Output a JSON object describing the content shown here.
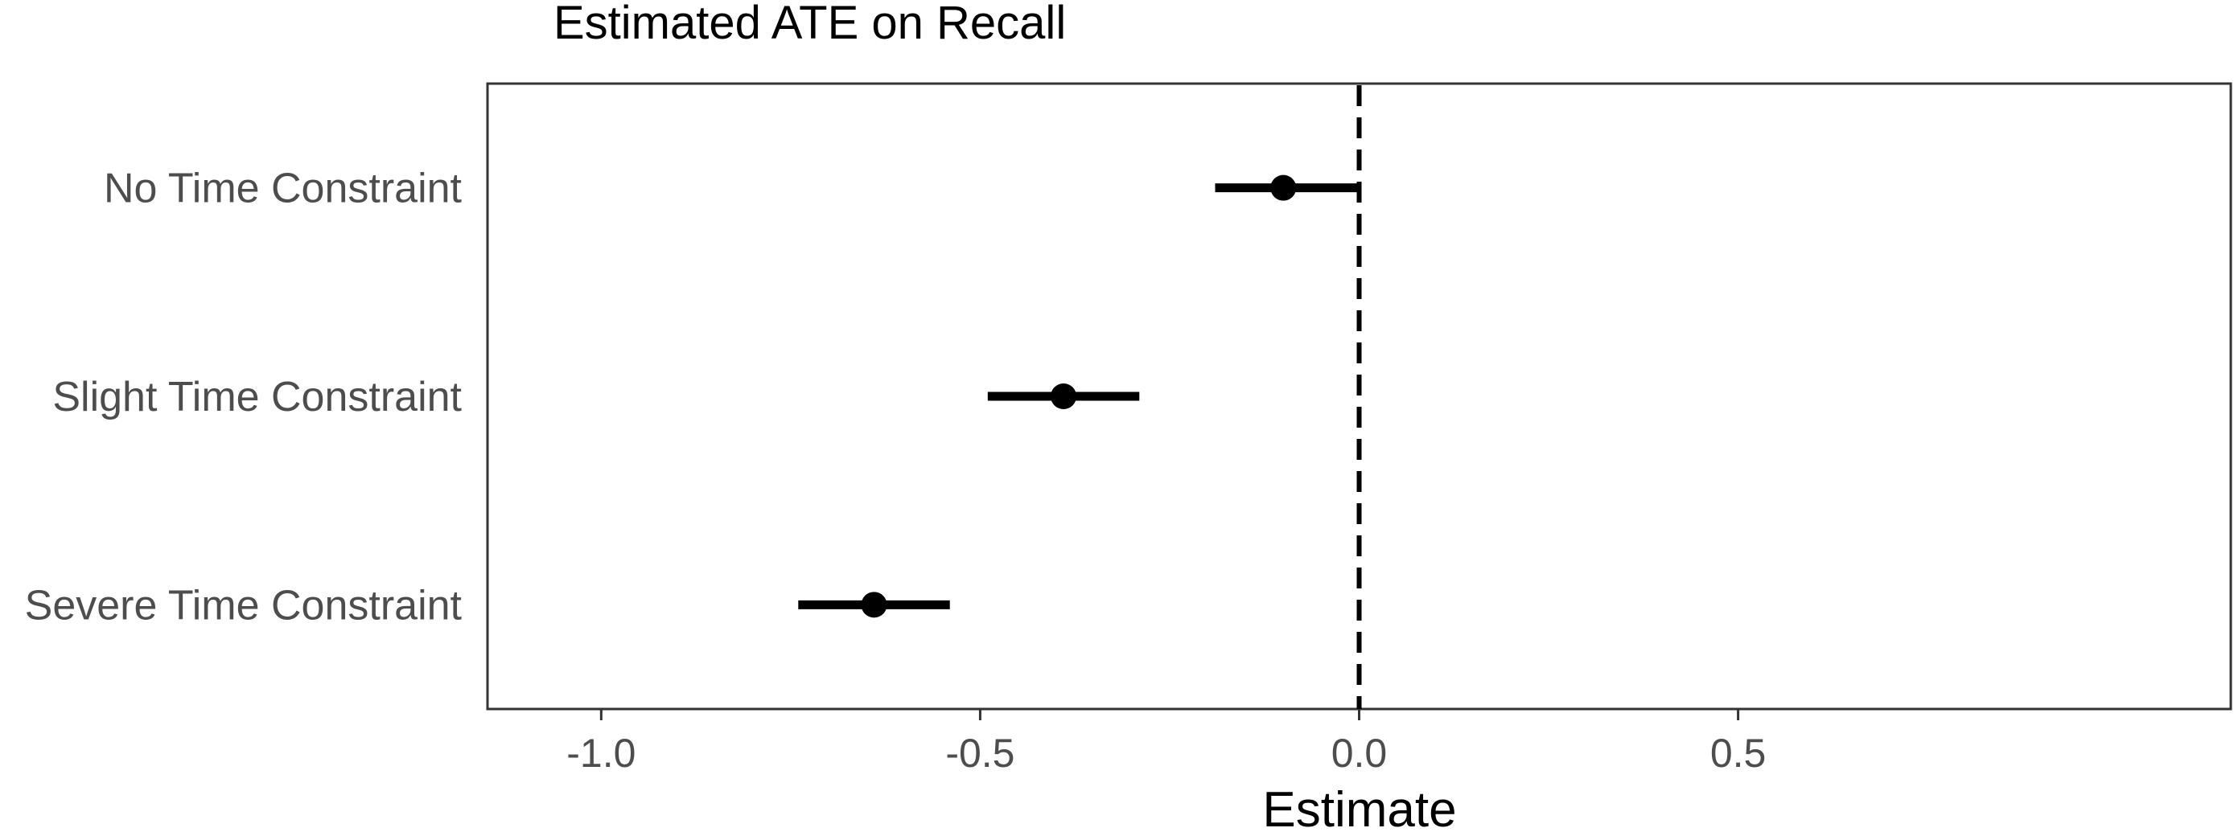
{
  "chart_data": {
    "type": "scatter",
    "subtype": "coefficient-plot",
    "title": "Estimated ATE on Recall",
    "xlabel": "Estimate",
    "ylabel": "",
    "xlim": [
      -1.15,
      1.15
    ],
    "xticks": [
      -1.0,
      -0.5,
      0.0,
      0.5
    ],
    "xtick_labels": [
      "-1.0",
      "-0.5",
      "0.0",
      "0.5"
    ],
    "reference_line": {
      "x": 0.0,
      "style": "dashed"
    },
    "categories": [
      "No Time Constraint",
      "Slight Time Constraint",
      "Severe Time Constraint"
    ],
    "series": [
      {
        "name": "Estimate",
        "points": [
          {
            "category": "No Time Constraint",
            "estimate": -0.1,
            "lower": -0.19,
            "upper": 0.0
          },
          {
            "category": "Slight Time Constraint",
            "estimate": -0.39,
            "lower": -0.49,
            "upper": -0.29
          },
          {
            "category": "Severe Time Constraint",
            "estimate": -0.64,
            "lower": -0.74,
            "upper": -0.54
          }
        ]
      }
    ],
    "grid": false,
    "colors": {
      "point": "#000000",
      "interval": "#000000",
      "panel_border": "#333333",
      "label": "#4d4d4d"
    }
  }
}
